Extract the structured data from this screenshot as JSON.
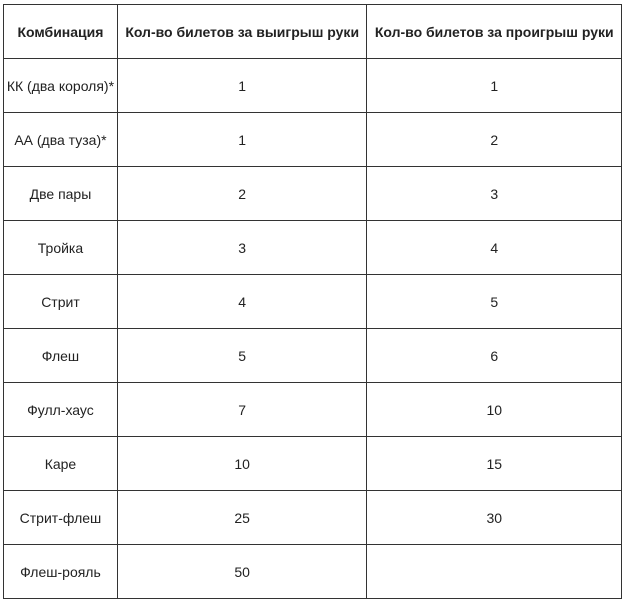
{
  "table": {
    "headers": [
      "Комбинация",
      "Кол-во билетов за выигрыш руки",
      "Кол-во билетов за проигрыш руки"
    ],
    "rows": [
      [
        "КК (два короля)*",
        "1",
        "1"
      ],
      [
        "АА (два туза)*",
        "1",
        "2"
      ],
      [
        "Две пары",
        "2",
        "3"
      ],
      [
        "Тройка",
        "3",
        "4"
      ],
      [
        "Стрит",
        "4",
        "5"
      ],
      [
        "Флеш",
        "5",
        "6"
      ],
      [
        "Фулл-хаус",
        "7",
        "10"
      ],
      [
        "Каре",
        "10",
        "15"
      ],
      [
        "Стрит-флеш",
        "25",
        "30"
      ],
      [
        "Флеш-рояль",
        "50",
        ""
      ]
    ]
  }
}
